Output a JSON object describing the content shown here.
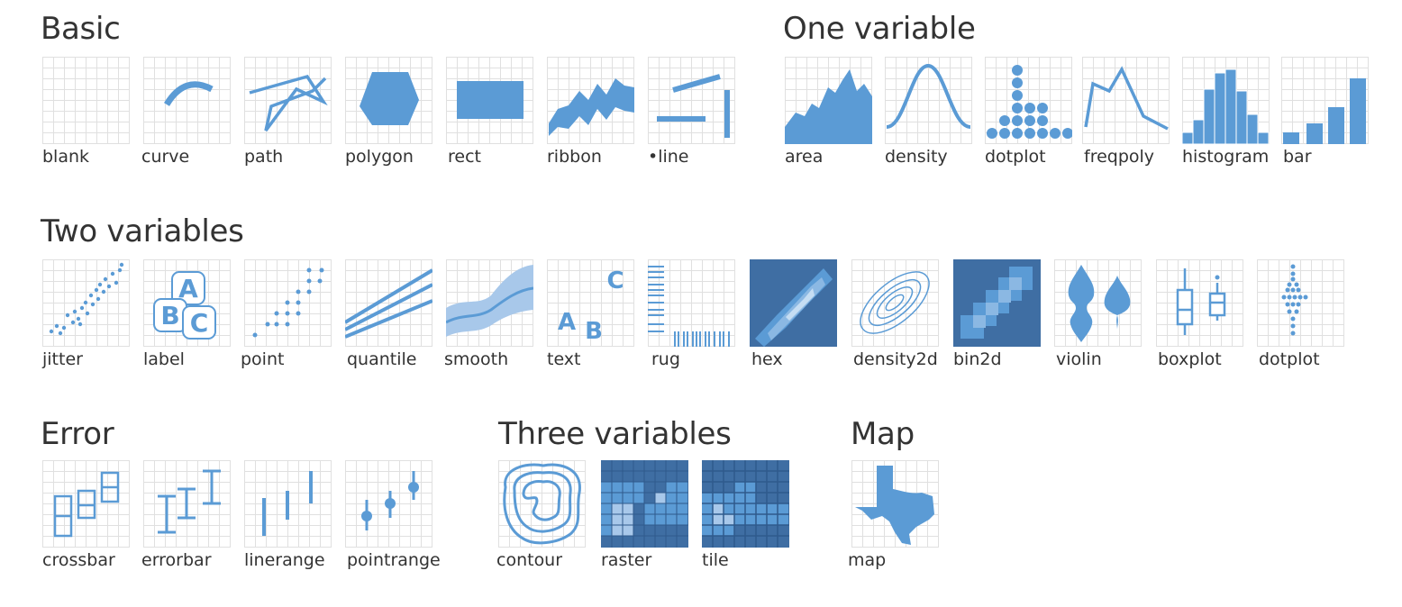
{
  "colors": {
    "accent": "#5b9bd5",
    "grid": "#e0e0e0",
    "text": "#333333",
    "dark": "#3f6ea3"
  },
  "sections": {
    "basic": "Basic",
    "one_variable": "One variable",
    "two_variables": "Two variables",
    "error": "Error",
    "three_variables": "Three variables",
    "map": "Map"
  },
  "geoms": {
    "blank": "blank",
    "curve": "curve",
    "path": "path",
    "polygon": "polygon",
    "rect": "rect",
    "ribbon": "ribbon",
    "line": "•line",
    "area": "area",
    "density": "density",
    "dotplot1": "dotplot",
    "freqpoly": "freqpoly",
    "histogram": "histogram",
    "bar": "bar",
    "jitter": "jitter",
    "label": "label",
    "point": "point",
    "quantile": "quantile",
    "smooth": "smooth",
    "text": "text",
    "rug": "rug",
    "hex": "hex",
    "density2d": "density2d",
    "bin2d": "bin2d",
    "violin": "violin",
    "boxplot": "boxplot",
    "dotplot2": "dotplot",
    "crossbar": "crossbar",
    "errorbar": "errorbar",
    "linerange": "linerange",
    "pointrange": "pointrange",
    "contour": "contour",
    "raster": "raster",
    "tile": "tile",
    "map": "map"
  },
  "label_glyphs": [
    "A",
    "B",
    "C"
  ],
  "text_glyphs": [
    "C",
    "A",
    "B"
  ]
}
